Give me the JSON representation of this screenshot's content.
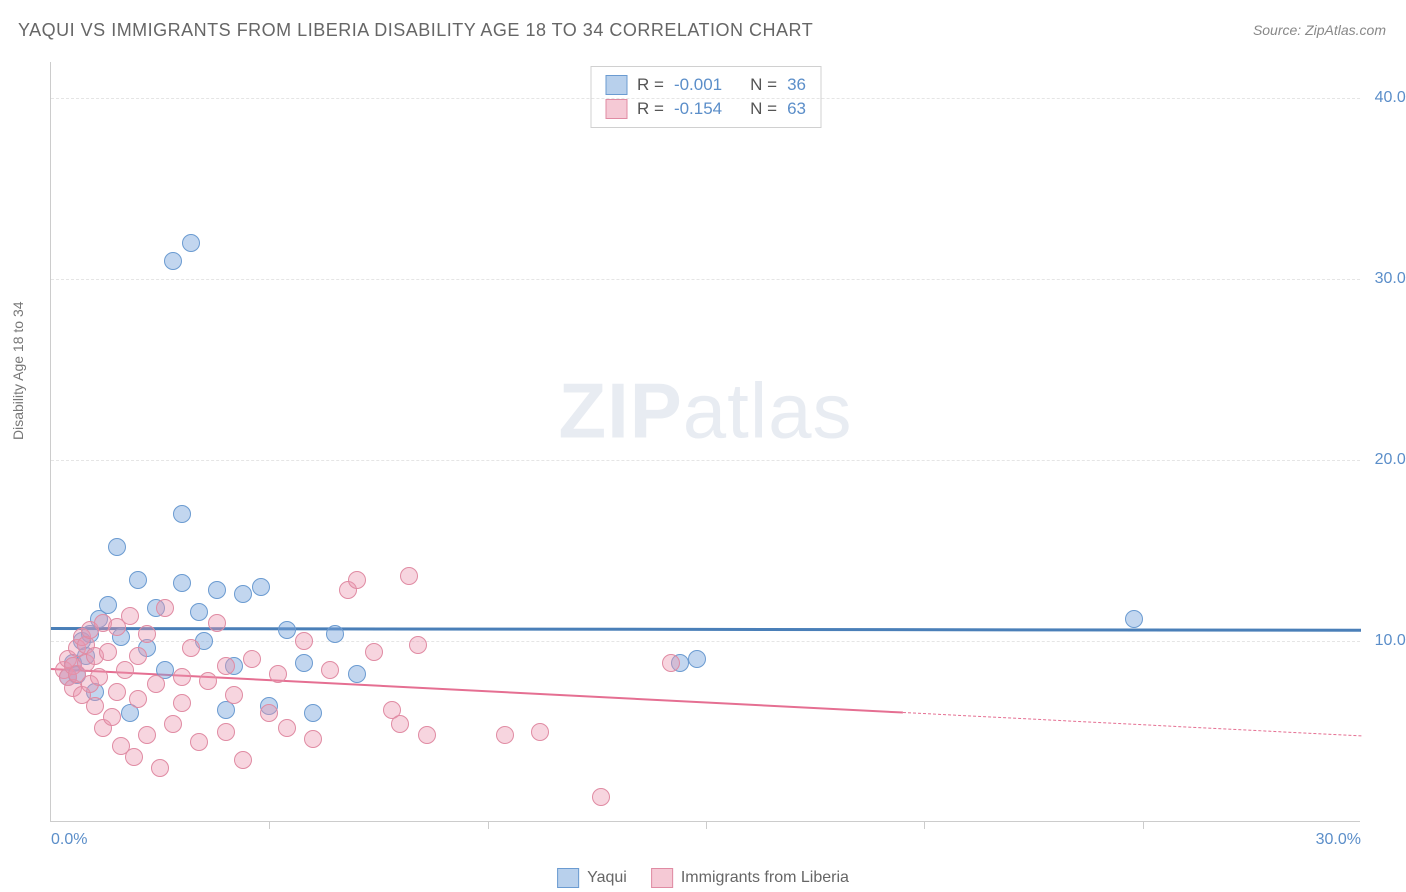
{
  "title": "YAQUI VS IMMIGRANTS FROM LIBERIA DISABILITY AGE 18 TO 34 CORRELATION CHART",
  "source": "Source: ZipAtlas.com",
  "ylabel": "Disability Age 18 to 34",
  "watermark_bold": "ZIP",
  "watermark_light": "atlas",
  "chart": {
    "type": "scatter",
    "background_color": "#ffffff",
    "grid_color": "#e5e5e5",
    "axis_color": "#cccccc",
    "tick_label_color": "#5b8ec9",
    "xlim": [
      0,
      30
    ],
    "ylim": [
      0,
      42
    ],
    "yticks": [
      10,
      20,
      30,
      40
    ],
    "ytick_labels": [
      "10.0%",
      "20.0%",
      "30.0%",
      "40.0%"
    ],
    "xticks_major": [
      0,
      30
    ],
    "xtick_labels": [
      "0.0%",
      "30.0%"
    ],
    "xticks_minor": [
      5,
      10,
      15,
      20,
      25
    ],
    "marker_radius": 9,
    "marker_stroke_width": 1.5,
    "series": [
      {
        "name": "Yaqui",
        "fill_color": "rgba(120, 165, 220, 0.45)",
        "stroke_color": "#6b9bd1",
        "swatch_fill": "#b8d0ec",
        "swatch_border": "#6b9bd1",
        "R": "-0.001",
        "N": "36",
        "trend": {
          "y_at_x0": 10.8,
          "y_at_xmax": 10.7,
          "solid_until_x": 30,
          "color": "#4a7fb8",
          "width": 3
        },
        "points": [
          [
            0.4,
            8.0
          ],
          [
            0.5,
            8.8
          ],
          [
            0.6,
            8.1
          ],
          [
            0.7,
            10.0
          ],
          [
            0.8,
            9.2
          ],
          [
            0.9,
            10.4
          ],
          [
            1.0,
            7.2
          ],
          [
            1.1,
            11.2
          ],
          [
            1.3,
            12.0
          ],
          [
            1.5,
            15.2
          ],
          [
            1.6,
            10.2
          ],
          [
            1.8,
            6.0
          ],
          [
            2.0,
            13.4
          ],
          [
            2.2,
            9.6
          ],
          [
            2.4,
            11.8
          ],
          [
            2.6,
            8.4
          ],
          [
            2.8,
            31.0
          ],
          [
            3.0,
            17.0
          ],
          [
            3.0,
            13.2
          ],
          [
            3.2,
            32.0
          ],
          [
            3.5,
            10.0
          ],
          [
            3.8,
            12.8
          ],
          [
            4.0,
            6.2
          ],
          [
            4.2,
            8.6
          ],
          [
            4.4,
            12.6
          ],
          [
            4.8,
            13.0
          ],
          [
            5.0,
            6.4
          ],
          [
            5.4,
            10.6
          ],
          [
            5.8,
            8.8
          ],
          [
            6.0,
            6.0
          ],
          [
            6.5,
            10.4
          ],
          [
            7.0,
            8.2
          ],
          [
            14.4,
            8.8
          ],
          [
            14.8,
            9.0
          ],
          [
            24.8,
            11.2
          ],
          [
            3.4,
            11.6
          ]
        ]
      },
      {
        "name": "Immigrants from Liberia",
        "fill_color": "rgba(235, 150, 175, 0.40)",
        "stroke_color": "#e08ba3",
        "swatch_fill": "#f5c9d5",
        "swatch_border": "#e08ba3",
        "R": "-0.154",
        "N": "63",
        "trend": {
          "y_at_x0": 8.5,
          "y_at_xmax": 4.8,
          "solid_until_x": 19.5,
          "color": "#e56f92",
          "width": 2
        },
        "points": [
          [
            0.3,
            8.4
          ],
          [
            0.4,
            9.0
          ],
          [
            0.4,
            8.0
          ],
          [
            0.5,
            8.6
          ],
          [
            0.5,
            7.4
          ],
          [
            0.6,
            9.6
          ],
          [
            0.6,
            8.2
          ],
          [
            0.7,
            10.2
          ],
          [
            0.7,
            7.0
          ],
          [
            0.8,
            8.8
          ],
          [
            0.8,
            9.8
          ],
          [
            0.9,
            7.6
          ],
          [
            0.9,
            10.6
          ],
          [
            1.0,
            6.4
          ],
          [
            1.0,
            9.2
          ],
          [
            1.1,
            8.0
          ],
          [
            1.2,
            11.0
          ],
          [
            1.2,
            5.2
          ],
          [
            1.3,
            9.4
          ],
          [
            1.4,
            5.8
          ],
          [
            1.5,
            10.8
          ],
          [
            1.5,
            7.2
          ],
          [
            1.6,
            4.2
          ],
          [
            1.7,
            8.4
          ],
          [
            1.8,
            11.4
          ],
          [
            1.9,
            3.6
          ],
          [
            2.0,
            6.8
          ],
          [
            2.0,
            9.2
          ],
          [
            2.2,
            10.4
          ],
          [
            2.2,
            4.8
          ],
          [
            2.4,
            7.6
          ],
          [
            2.5,
            3.0
          ],
          [
            2.6,
            11.8
          ],
          [
            2.8,
            5.4
          ],
          [
            3.0,
            8.0
          ],
          [
            3.0,
            6.6
          ],
          [
            3.2,
            9.6
          ],
          [
            3.4,
            4.4
          ],
          [
            3.6,
            7.8
          ],
          [
            3.8,
            11.0
          ],
          [
            4.0,
            5.0
          ],
          [
            4.0,
            8.6
          ],
          [
            4.2,
            7.0
          ],
          [
            4.4,
            3.4
          ],
          [
            4.6,
            9.0
          ],
          [
            5.0,
            6.0
          ],
          [
            5.2,
            8.2
          ],
          [
            5.4,
            5.2
          ],
          [
            5.8,
            10.0
          ],
          [
            6.0,
            4.6
          ],
          [
            6.4,
            8.4
          ],
          [
            6.8,
            12.8
          ],
          [
            7.0,
            13.4
          ],
          [
            7.4,
            9.4
          ],
          [
            7.8,
            6.2
          ],
          [
            8.0,
            5.4
          ],
          [
            8.2,
            13.6
          ],
          [
            8.4,
            9.8
          ],
          [
            8.6,
            4.8
          ],
          [
            10.4,
            4.8
          ],
          [
            11.2,
            5.0
          ],
          [
            12.6,
            1.4
          ],
          [
            14.2,
            8.8
          ]
        ]
      }
    ]
  },
  "legend_top": {
    "R_label": "R =",
    "N_label": "N ="
  },
  "legend_bottom": {
    "label1": "Yaqui",
    "label2": "Immigrants from Liberia"
  }
}
